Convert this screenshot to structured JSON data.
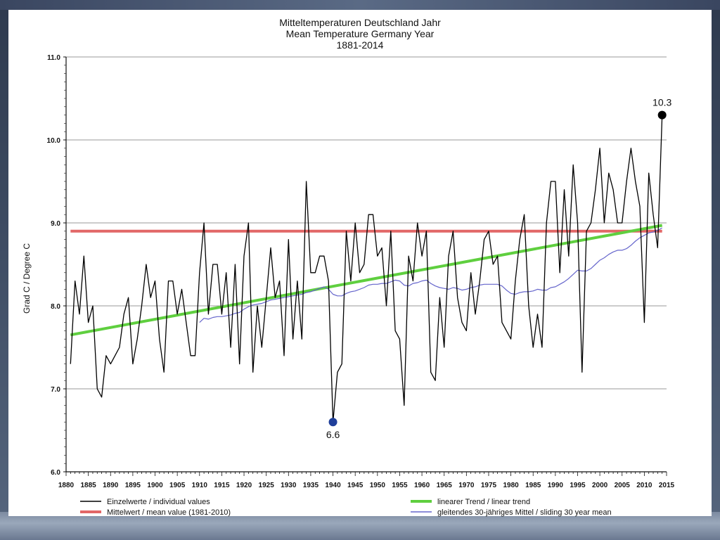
{
  "chart_data": {
    "type": "line",
    "title": [
      "Mitteltemperaturen Deutschland Jahr",
      "Mean Temperature Germany Year",
      "1881-2014"
    ],
    "xlabel": "",
    "ylabel": "Grad C / Degree C",
    "xlim": [
      1880,
      2015
    ],
    "ylim": [
      6.0,
      11.0
    ],
    "x_ticks": [
      1880,
      1885,
      1890,
      1895,
      1900,
      1905,
      1910,
      1915,
      1920,
      1925,
      1930,
      1935,
      1940,
      1945,
      1950,
      1955,
      1960,
      1965,
      1970,
      1975,
      1980,
      1985,
      1990,
      1995,
      2000,
      2005,
      2010,
      2015
    ],
    "y_ticks": [
      "6.0",
      "7.0",
      "8.0",
      "9.0",
      "10.0",
      "11.0"
    ],
    "grid": "horizontal",
    "series": [
      {
        "name": "Einzelwerte / individual values",
        "color": "#000000",
        "x": [
          1881,
          1882,
          1883,
          1884,
          1885,
          1886,
          1887,
          1888,
          1889,
          1890,
          1891,
          1892,
          1893,
          1894,
          1895,
          1896,
          1897,
          1898,
          1899,
          1900,
          1901,
          1902,
          1903,
          1904,
          1905,
          1906,
          1907,
          1908,
          1909,
          1910,
          1911,
          1912,
          1913,
          1914,
          1915,
          1916,
          1917,
          1918,
          1919,
          1920,
          1921,
          1922,
          1923,
          1924,
          1925,
          1926,
          1927,
          1928,
          1929,
          1930,
          1931,
          1932,
          1933,
          1934,
          1935,
          1936,
          1937,
          1938,
          1939,
          1940,
          1941,
          1942,
          1943,
          1944,
          1945,
          1946,
          1947,
          1948,
          1949,
          1950,
          1951,
          1952,
          1953,
          1954,
          1955,
          1956,
          1957,
          1958,
          1959,
          1960,
          1961,
          1962,
          1963,
          1964,
          1965,
          1966,
          1967,
          1968,
          1969,
          1970,
          1971,
          1972,
          1973,
          1974,
          1975,
          1976,
          1977,
          1978,
          1979,
          1980,
          1981,
          1982,
          1983,
          1984,
          1985,
          1986,
          1987,
          1988,
          1989,
          1990,
          1991,
          1992,
          1993,
          1994,
          1995,
          1996,
          1997,
          1998,
          1999,
          2000,
          2001,
          2002,
          2003,
          2004,
          2005,
          2006,
          2007,
          2008,
          2009,
          2010,
          2011,
          2012,
          2013,
          2014
        ],
        "y": [
          7.3,
          8.3,
          7.9,
          8.6,
          7.8,
          8.0,
          7.0,
          6.9,
          7.4,
          7.3,
          7.4,
          7.5,
          7.9,
          8.1,
          7.3,
          7.6,
          8.0,
          8.5,
          8.1,
          8.3,
          7.6,
          7.2,
          8.3,
          8.3,
          7.9,
          8.2,
          7.8,
          7.4,
          7.4,
          8.4,
          9.0,
          7.9,
          8.5,
          8.5,
          7.9,
          8.4,
          7.5,
          8.5,
          7.3,
          8.6,
          9.0,
          7.2,
          8.0,
          7.5,
          8.1,
          8.7,
          8.1,
          8.3,
          7.4,
          8.8,
          7.6,
          8.3,
          7.6,
          9.5,
          8.4,
          8.4,
          8.6,
          8.6,
          8.3,
          6.6,
          7.2,
          7.3,
          8.9,
          8.3,
          9.0,
          8.4,
          8.5,
          9.1,
          9.1,
          8.6,
          8.7,
          8.0,
          8.9,
          7.7,
          7.6,
          6.8,
          8.6,
          8.3,
          9.0,
          8.6,
          8.9,
          7.2,
          7.1,
          8.1,
          7.5,
          8.6,
          8.9,
          8.1,
          7.8,
          7.7,
          8.4,
          7.9,
          8.3,
          8.8,
          8.9,
          8.5,
          8.6,
          7.8,
          7.7,
          7.6,
          8.3,
          8.8,
          9.1,
          8.0,
          7.5,
          7.9,
          7.5,
          9.0,
          9.5,
          9.5,
          8.4,
          9.4,
          8.6,
          9.7,
          9.0,
          7.2,
          8.9,
          9.0,
          9.4,
          9.9,
          9.0,
          9.6,
          9.4,
          9.0,
          9.0,
          9.5,
          9.9,
          9.5,
          9.2,
          7.8,
          9.6,
          9.1,
          8.7,
          10.3
        ]
      },
      {
        "name": "Mittelwert / mean value (1981-2010)",
        "color": "#e26767",
        "x": [
          1881,
          2014
        ],
        "y": [
          8.9,
          8.9
        ]
      },
      {
        "name": "linearer Trend / linear trend",
        "color": "#5fcf3f",
        "x": [
          1881,
          2014
        ],
        "y": [
          7.65,
          8.97
        ]
      },
      {
        "name": "gleitendes 30-jähriges Mittel / sliding 30 year mean",
        "color": "#6666cc",
        "x": [
          1910,
          1911,
          1912,
          1913,
          1914,
          1915,
          1916,
          1917,
          1918,
          1919,
          1920,
          1921,
          1922,
          1923,
          1924,
          1925,
          1926,
          1927,
          1928,
          1929,
          1930,
          1931,
          1932,
          1933,
          1934,
          1935,
          1936,
          1937,
          1938,
          1939,
          1940,
          1941,
          1942,
          1943,
          1944,
          1945,
          1946,
          1947,
          1948,
          1949,
          1950,
          1951,
          1952,
          1953,
          1954,
          1955,
          1956,
          1957,
          1958,
          1959,
          1960,
          1961,
          1962,
          1963,
          1964,
          1965,
          1966,
          1967,
          1968,
          1969,
          1970,
          1971,
          1972,
          1973,
          1974,
          1975,
          1976,
          1977,
          1978,
          1979,
          1980,
          1981,
          1982,
          1983,
          1984,
          1985,
          1986,
          1987,
          1988,
          1989,
          1990,
          1991,
          1992,
          1993,
          1994,
          1995,
          1996,
          1997,
          1998,
          1999,
          2000,
          2001,
          2002,
          2003,
          2004,
          2005,
          2006,
          2007,
          2008,
          2009,
          2010,
          2011,
          2012,
          2013,
          2014
        ],
        "y": [
          7.8,
          7.85,
          7.84,
          7.86,
          7.87,
          7.87,
          7.88,
          7.89,
          7.91,
          7.92,
          7.96,
          7.99,
          8.01,
          8.02,
          8.03,
          8.05,
          8.07,
          8.08,
          8.09,
          8.1,
          8.11,
          8.12,
          8.13,
          8.14,
          8.16,
          8.17,
          8.19,
          8.21,
          8.23,
          8.2,
          8.14,
          8.12,
          8.12,
          8.15,
          8.17,
          8.18,
          8.2,
          8.22,
          8.25,
          8.26,
          8.26,
          8.27,
          8.27,
          8.29,
          8.31,
          8.3,
          8.25,
          8.24,
          8.27,
          8.28,
          8.3,
          8.31,
          8.27,
          8.24,
          8.22,
          8.21,
          8.2,
          8.22,
          8.21,
          8.19,
          8.2,
          8.22,
          8.23,
          8.25,
          8.26,
          8.26,
          8.26,
          8.26,
          8.24,
          8.19,
          8.15,
          8.14,
          8.16,
          8.17,
          8.17,
          8.18,
          8.2,
          8.19,
          8.19,
          8.22,
          8.23,
          8.26,
          8.29,
          8.33,
          8.38,
          8.43,
          8.42,
          8.42,
          8.45,
          8.5,
          8.55,
          8.58,
          8.62,
          8.65,
          8.67,
          8.67,
          8.69,
          8.73,
          8.78,
          8.82,
          8.85,
          8.88,
          8.89,
          8.91,
          8.94
        ]
      }
    ],
    "annotations": [
      {
        "label": "10.3",
        "x": 2014,
        "y": 10.3,
        "marker_color": "#000000",
        "position": "above"
      },
      {
        "label": "6.6",
        "x": 1940,
        "y": 6.6,
        "marker_color": "#1f3f9a",
        "position": "below"
      }
    ],
    "legend": {
      "placement": "bottom",
      "items": [
        {
          "label": "Einzelwerte / individual values",
          "color": "#000000"
        },
        {
          "label": "linearer Trend / linear trend",
          "color": "#5fcf3f"
        },
        {
          "label": "Mittelwert / mean value (1981-2010)",
          "color": "#e26767"
        },
        {
          "label": "gleitendes 30-jähriges Mittel / sliding 30 year mean",
          "color": "#6666cc"
        }
      ]
    }
  }
}
